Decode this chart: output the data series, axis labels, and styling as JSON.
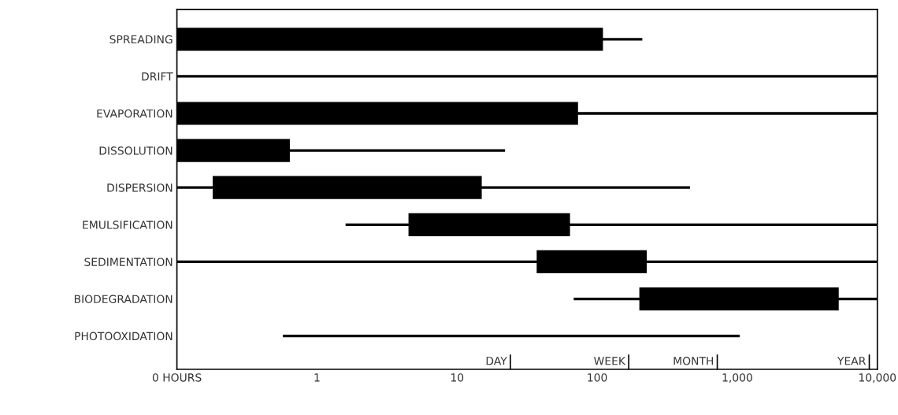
{
  "chart_data": {
    "type": "bar",
    "orientation": "horizontal",
    "log": "x",
    "categories": [
      "SPREADING",
      "DRIFT",
      "EVAPORATION",
      "DISSOLUTION",
      "DISPERSION",
      "EMULSIFICATION",
      "SEDIMENTATION",
      "BIODEGRADATION",
      "PHOTOOXIDATION"
    ],
    "xlim": [
      0.1,
      10000
    ],
    "xticks": [
      {
        "value": 0.1,
        "label": "0 HOURS"
      },
      1,
      10,
      100,
      {
        "value": 1000,
        "label": "1,000"
      },
      {
        "value": 10000,
        "label": "10,000"
      }
    ],
    "ref_lines": [
      {
        "axis": "x",
        "value": 24,
        "label": "DAY"
      },
      {
        "axis": "x",
        "value": 168,
        "label": "WEEK"
      },
      {
        "axis": "x",
        "value": 720,
        "label": "MONTH"
      },
      {
        "axis": "x",
        "value": 8760,
        "label": "YEAR"
      }
    ],
    "series": [
      {
        "color": "#000000",
        "base": [
          0.1,
          0.1,
          0.1,
          0.1,
          0.1,
          1.6,
          0.1,
          68,
          0.57
        ],
        "values": [
          209.9,
          9999.9,
          9999.9,
          21.9,
          459.9,
          9998.4,
          9999.9,
          9932,
          1039.43
        ]
      },
      {
        "color": "#000000",
        "base": [
          0.1,
          null,
          0.1,
          0.1,
          0.18,
          4.5,
          37,
          200,
          null
        ],
        "values": [
          109.9,
          null,
          72.9,
          0.54,
          14.82,
          59.5,
          189,
          5100,
          null
        ]
      }
    ],
    "grid": false
  }
}
